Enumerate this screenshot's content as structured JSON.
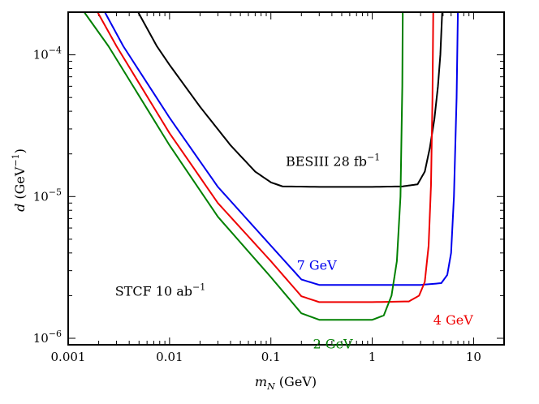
{
  "chart_data": {
    "type": "line",
    "title": "",
    "xlabel": "m_N (GeV)",
    "ylabel": "d (GeV^-1)",
    "xscale": "log",
    "yscale": "log",
    "xlim": [
      0.001,
      20
    ],
    "ylim": [
      9e-07,
      0.0002
    ],
    "x_ticks": [
      {
        "value": 0.001,
        "label": "0.001"
      },
      {
        "value": 0.01,
        "label": "0.01"
      },
      {
        "value": 0.1,
        "label": "0.1"
      },
      {
        "value": 1,
        "label": "1"
      },
      {
        "value": 10,
        "label": "10"
      }
    ],
    "y_ticks": [
      {
        "value": 1e-06,
        "base": "10",
        "exp": "−6"
      },
      {
        "value": 1e-05,
        "base": "10",
        "exp": "−5"
      },
      {
        "value": 0.0001,
        "base": "10",
        "exp": "−4"
      }
    ],
    "series": [
      {
        "name": "BESIII 28 fb^-1",
        "color": "#000000",
        "points": [
          [
            0.0049,
            0.0002
          ],
          [
            0.0075,
            0.000115
          ],
          [
            0.01,
            8.5e-05
          ],
          [
            0.02,
            4.3e-05
          ],
          [
            0.04,
            2.3e-05
          ],
          [
            0.07,
            1.5e-05
          ],
          [
            0.1,
            1.26e-05
          ],
          [
            0.13,
            1.18e-05
          ],
          [
            0.3,
            1.17e-05
          ],
          [
            1,
            1.17e-05
          ],
          [
            2,
            1.18e-05
          ],
          [
            2.8,
            1.22e-05
          ],
          [
            3.3,
            1.5e-05
          ],
          [
            3.7,
            2.2e-05
          ],
          [
            4.1,
            3.5e-05
          ],
          [
            4.45,
            6e-05
          ],
          [
            4.7,
            0.0001
          ],
          [
            4.9,
            0.0002
          ]
        ]
      },
      {
        "name": "7 GeV",
        "color": "#0000ee",
        "points": [
          [
            0.0023,
            0.0002
          ],
          [
            0.0035,
            0.000115
          ],
          [
            0.01,
            3.6e-05
          ],
          [
            0.03,
            1.17e-05
          ],
          [
            0.1,
            4.5e-06
          ],
          [
            0.2,
            2.6e-06
          ],
          [
            0.3,
            2.38e-06
          ],
          [
            1,
            2.38e-06
          ],
          [
            3,
            2.38e-06
          ],
          [
            4.8,
            2.45e-06
          ],
          [
            5.5,
            2.8e-06
          ],
          [
            6,
            4e-06
          ],
          [
            6.4,
            1e-05
          ],
          [
            6.8,
            5e-05
          ],
          [
            7,
            0.0002
          ]
        ]
      },
      {
        "name": "4 GeV",
        "color": "#ee0000",
        "points": [
          [
            0.00195,
            0.0002
          ],
          [
            0.003,
            0.000115
          ],
          [
            0.01,
            2.8e-05
          ],
          [
            0.03,
            9e-06
          ],
          [
            0.1,
            3.5e-06
          ],
          [
            0.2,
            1.98e-06
          ],
          [
            0.3,
            1.8e-06
          ],
          [
            1,
            1.8e-06
          ],
          [
            2.3,
            1.82e-06
          ],
          [
            2.9,
            2e-06
          ],
          [
            3.3,
            2.5e-06
          ],
          [
            3.6,
            4.5e-06
          ],
          [
            3.8,
            1.2e-05
          ],
          [
            3.93,
            5e-05
          ],
          [
            4,
            0.0002
          ]
        ]
      },
      {
        "name": "2 GeV",
        "color": "#008000",
        "points": [
          [
            0.00144,
            0.0002
          ],
          [
            0.0025,
            0.000115
          ],
          [
            0.01,
            2.3e-05
          ],
          [
            0.03,
            7.2e-06
          ],
          [
            0.1,
            2.7e-06
          ],
          [
            0.2,
            1.5e-06
          ],
          [
            0.3,
            1.35e-06
          ],
          [
            1,
            1.35e-06
          ],
          [
            1.3,
            1.45e-06
          ],
          [
            1.55,
            2e-06
          ],
          [
            1.75,
            3.5e-06
          ],
          [
            1.9,
            1e-05
          ],
          [
            1.98,
            6e-05
          ],
          [
            2,
            0.0002
          ]
        ]
      }
    ],
    "annotations": [
      {
        "text": "BESIII 28 fb",
        "sup": "−1",
        "color": "#000000",
        "x": 0.14,
        "y": 1.65e-05
      },
      {
        "text": "7 GeV",
        "sup": "",
        "color": "#0000ee",
        "x": 0.18,
        "y": 3.05e-06
      },
      {
        "text": "4 GeV",
        "sup": "",
        "color": "#ee0000",
        "x": 4.0,
        "y": 1.25e-06
      },
      {
        "text": "2 GeV",
        "sup": "",
        "color": "#008000",
        "x": 0.26,
        "y": 8.5e-07
      },
      {
        "text": "STCF 10 ab",
        "sup": "−1",
        "color": "#000000",
        "x": 0.0029,
        "y": 2e-06
      }
    ]
  },
  "axis_text": {
    "x_var": "m",
    "x_sub": "N",
    "x_unit": " (GeV)",
    "y_var": "d",
    "y_unit": " (GeV",
    "y_unit_sup": "−1",
    "y_unit_close": ")"
  }
}
